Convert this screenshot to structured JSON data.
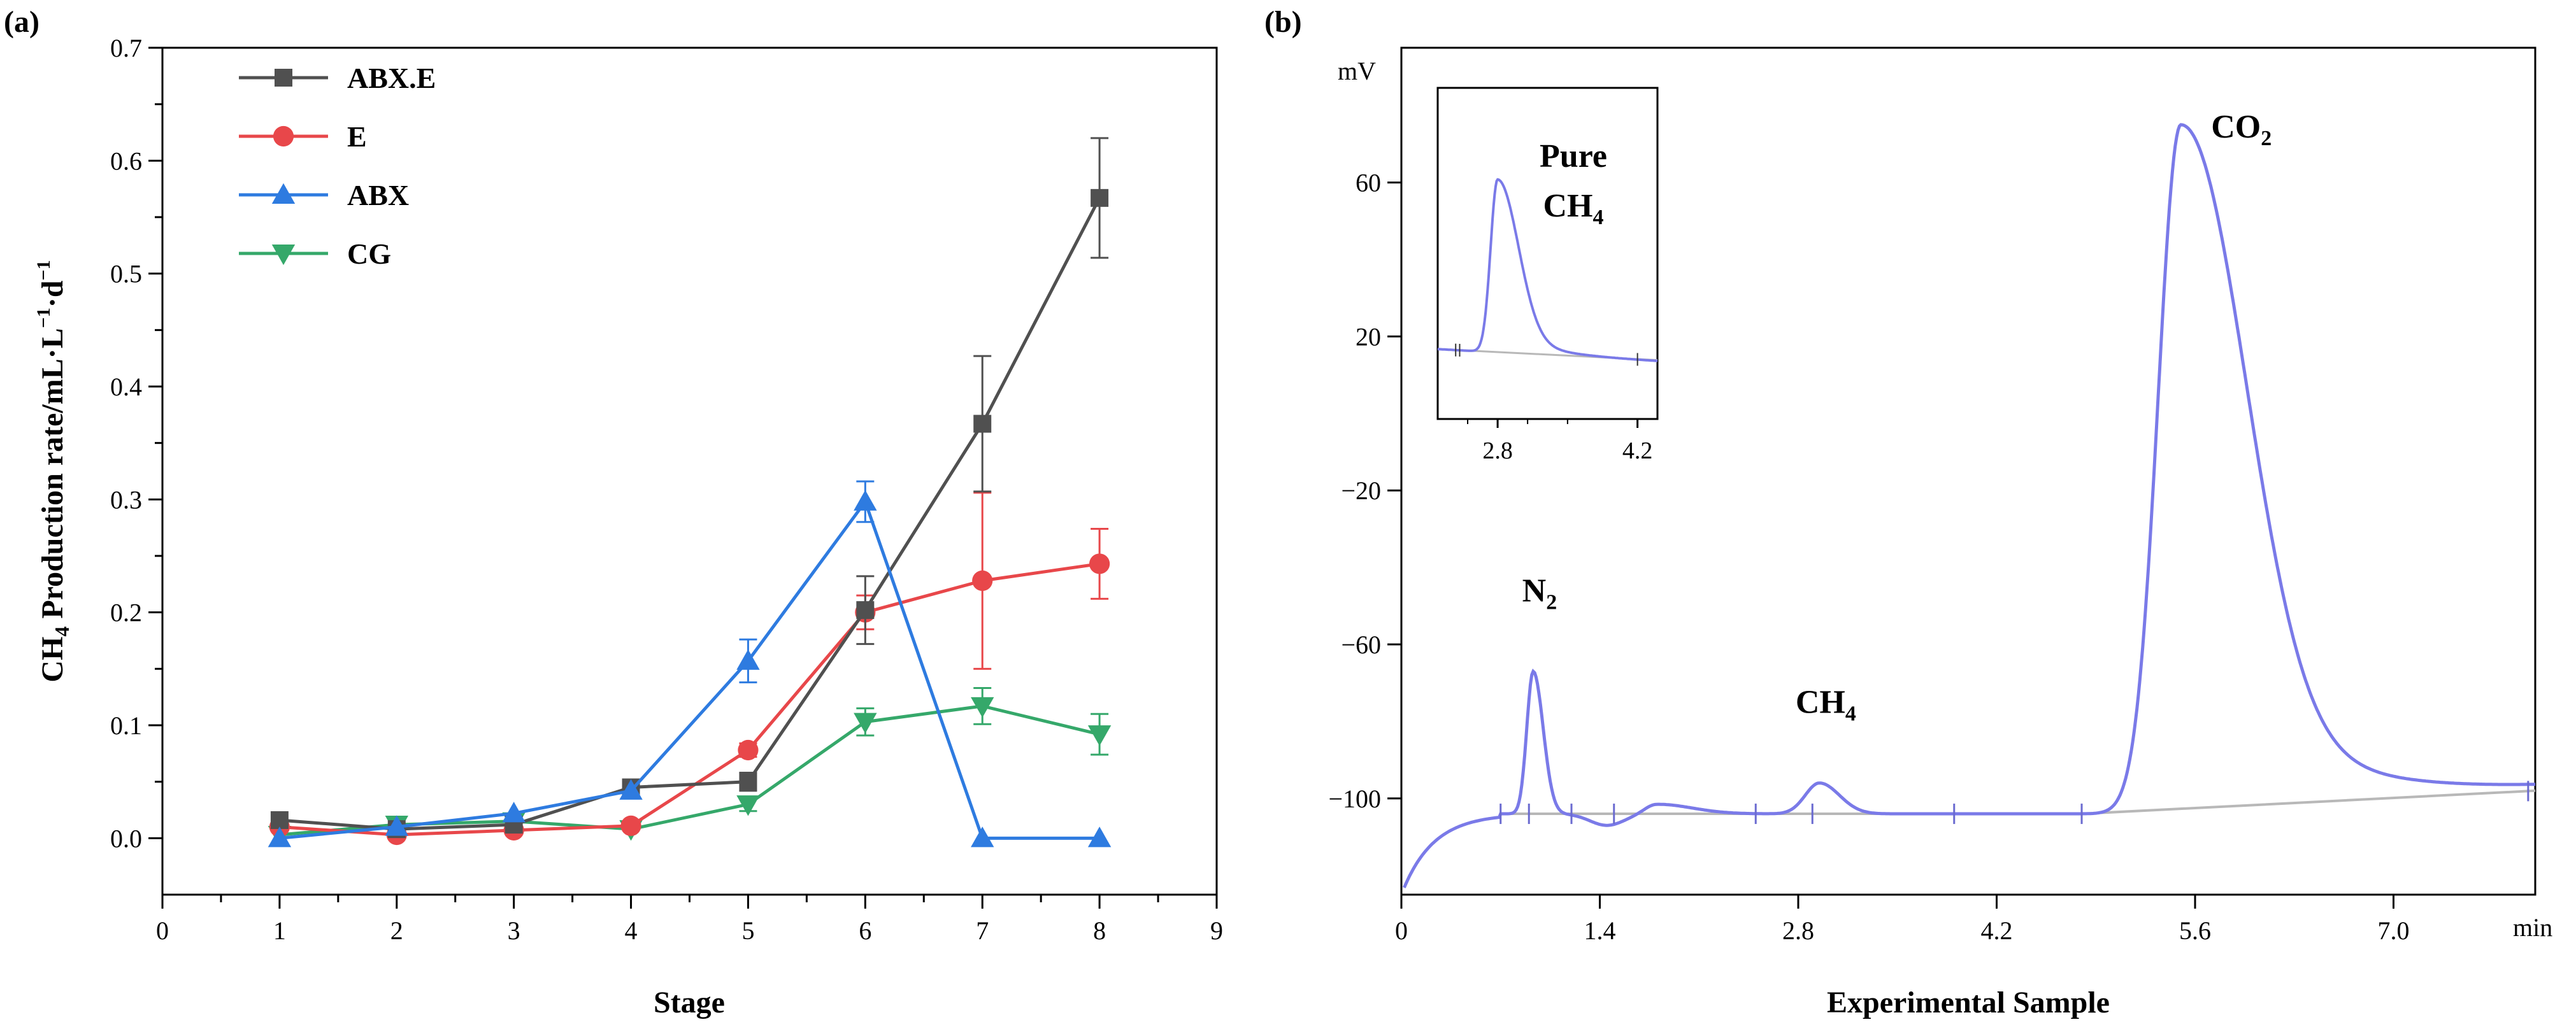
{
  "chart_data": [
    {
      "panel_label": "(a)",
      "type": "line",
      "title": "",
      "xlabel": "Stage",
      "ylabel": {
        "pre": "CH",
        "sub": "4",
        "main": " Production rate/mL·L",
        "sup1": "−1",
        "mid": "·d",
        "sup2": "−1"
      },
      "xlim": [
        0,
        9
      ],
      "ylim": [
        -0.05,
        0.7
      ],
      "xticks": [
        "0",
        "1",
        "2",
        "3",
        "4",
        "5",
        "6",
        "7",
        "8",
        "9"
      ],
      "yticks": [
        "0.0",
        "0.1",
        "0.2",
        "0.3",
        "0.4",
        "0.5",
        "0.6",
        "0.7"
      ],
      "legend_position": "top-left",
      "x": [
        1,
        2,
        3,
        4,
        5,
        6,
        7,
        8
      ],
      "series": [
        {
          "name": "ABX.E",
          "color": "#505050",
          "marker": "square",
          "values": [
            0.016,
            0.008,
            0.012,
            0.045,
            0.05,
            0.202,
            0.367,
            0.567
          ],
          "errors": [
            0.004,
            0.003,
            0.003,
            0.004,
            0.008,
            0.03,
            0.06,
            0.053
          ]
        },
        {
          "name": "E",
          "color": "#e8474a",
          "marker": "circle",
          "values": [
            0.01,
            0.003,
            0.007,
            0.011,
            0.078,
            0.2,
            0.228,
            0.243
          ],
          "errors": [
            0.003,
            0.002,
            0.002,
            0.003,
            0.006,
            0.015,
            0.078,
            0.031
          ]
        },
        {
          "name": "ABX",
          "color": "#2e7be0",
          "marker": "triangle-up",
          "values": [
            0.0,
            0.01,
            0.022,
            0.042,
            0.157,
            0.298,
            0.0,
            0.0
          ],
          "errors": [
            0.003,
            0.003,
            0.004,
            0.004,
            0.019,
            0.018,
            0.0,
            0.0
          ]
        },
        {
          "name": "CG",
          "color": "#35a86a",
          "marker": "triangle-down",
          "values": [
            0.003,
            0.012,
            0.015,
            0.008,
            0.03,
            0.103,
            0.117,
            0.092
          ],
          "errors": [
            0.002,
            0.003,
            0.003,
            0.003,
            0.006,
            0.012,
            0.016,
            0.018
          ]
        }
      ]
    },
    {
      "panel_label": "(b)",
      "type": "line",
      "title": "",
      "xlabel": "Experimental Sample",
      "xunit": "min",
      "yunit": "mV",
      "xlim": [
        0,
        8.0
      ],
      "ylim": [
        -125,
        95
      ],
      "xticks": [
        0,
        1.4,
        2.8,
        4.2,
        5.6,
        7.0
      ],
      "xtick_labels": [
        "0",
        "1.4",
        "2.8",
        "4.2",
        "5.6",
        "7.0"
      ],
      "yticks": [
        60,
        20,
        -20,
        -60,
        -100
      ],
      "ytick_labels": [
        "60",
        "20",
        "−20",
        "−60",
        "−100"
      ],
      "trace_color": "#7a7ae8",
      "baseline_color": "#b8b8b8",
      "baseline_points": [
        [
          0.7,
          -104
        ],
        [
          3.2,
          -104
        ],
        [
          4.8,
          -104
        ],
        [
          8.0,
          -98
        ]
      ],
      "integration_marks": [
        0.7,
        0.9,
        1.2,
        1.5,
        2.5,
        2.9,
        3.9,
        4.8,
        7.95
      ],
      "peaks": [
        {
          "label": "N",
          "sub": "2",
          "rt": 0.93,
          "height_mV": -67
        },
        {
          "label": "CH",
          "sub": "4",
          "rt": 2.95,
          "height_mV": -96
        },
        {
          "label": "CO",
          "sub": "2",
          "rt": 5.5,
          "height_mV": 75
        }
      ],
      "inset": {
        "label_line1": "Pure",
        "label_line2_pre": "CH",
        "label_line2_sub": "4",
        "xticks": [
          "2.8",
          "4.2"
        ],
        "xlim": [
          2.2,
          4.4
        ],
        "peak_rt": 2.8
      }
    }
  ]
}
